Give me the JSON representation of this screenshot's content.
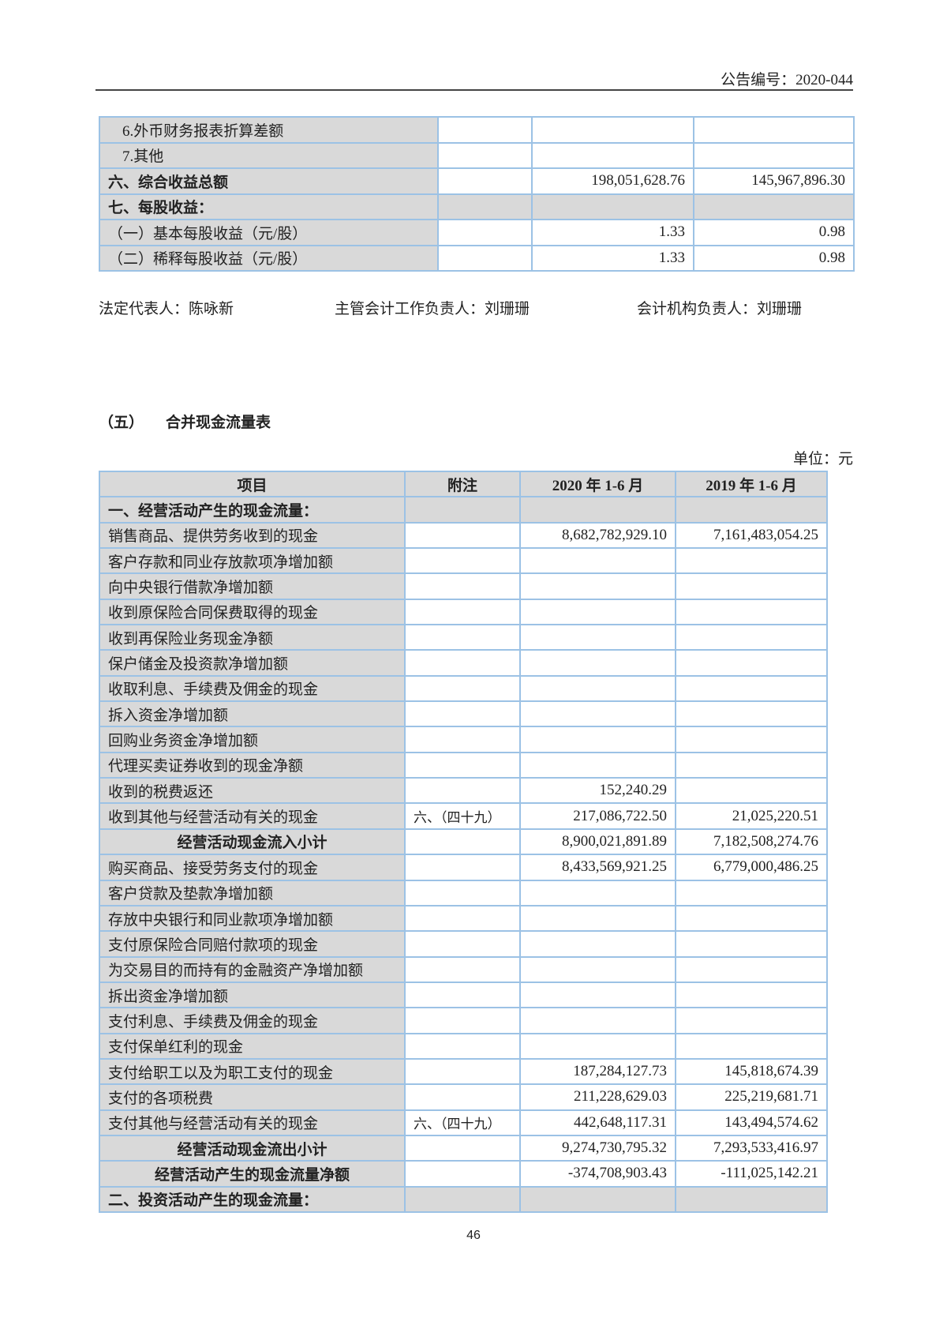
{
  "header": {
    "doc_number": "公告编号：2020-044"
  },
  "income_tail": {
    "rows": [
      {
        "label": "6.外币财务报表折算差额",
        "note": "",
        "v1": "",
        "v2": "",
        "type": "indent"
      },
      {
        "label": "7.其他",
        "note": "",
        "v1": "",
        "v2": "",
        "type": "indent"
      },
      {
        "label": "六、综合收益总额",
        "note": "",
        "v1": "198,051,628.76",
        "v2": "145,967,896.30",
        "type": "bold"
      },
      {
        "label": "七、每股收益：",
        "note": "",
        "v1": "",
        "v2": "",
        "type": "section"
      },
      {
        "label": "（一）基本每股收益（元/股）",
        "note": "",
        "v1": "1.33",
        "v2": "0.98",
        "type": "normal"
      },
      {
        "label": "（二）稀释每股收益（元/股）",
        "note": "",
        "v1": "1.33",
        "v2": "0.98",
        "type": "normal"
      }
    ]
  },
  "signatures": {
    "legal_rep": "法定代表人：陈咏新",
    "accounting_head": "主管会计工作负责人：刘珊珊",
    "accounting_dept_head": "会计机构负责人：刘珊珊"
  },
  "section": {
    "number": "（五）",
    "title": "合并现金流量表",
    "unit": "单位：元"
  },
  "cash_flow": {
    "headers": [
      "项目",
      "附注",
      "2020 年 1-6 月",
      "2019 年 1-6 月"
    ],
    "rows": [
      {
        "label": "一、经营活动产生的现金流量：",
        "note": "",
        "v1": "",
        "v2": "",
        "type": "section"
      },
      {
        "label": "销售商品、提供劳务收到的现金",
        "note": "",
        "v1": "8,682,782,929.10",
        "v2": "7,161,483,054.25",
        "type": "normal"
      },
      {
        "label": "客户存款和同业存放款项净增加额",
        "note": "",
        "v1": "",
        "v2": "",
        "type": "normal"
      },
      {
        "label": "向中央银行借款净增加额",
        "note": "",
        "v1": "",
        "v2": "",
        "type": "normal"
      },
      {
        "label": "收到原保险合同保费取得的现金",
        "note": "",
        "v1": "",
        "v2": "",
        "type": "normal"
      },
      {
        "label": "收到再保险业务现金净额",
        "note": "",
        "v1": "",
        "v2": "",
        "type": "normal"
      },
      {
        "label": "保户储金及投资款净增加额",
        "note": "",
        "v1": "",
        "v2": "",
        "type": "normal"
      },
      {
        "label": "收取利息、手续费及佣金的现金",
        "note": "",
        "v1": "",
        "v2": "",
        "type": "normal"
      },
      {
        "label": "拆入资金净增加额",
        "note": "",
        "v1": "",
        "v2": "",
        "type": "normal"
      },
      {
        "label": "回购业务资金净增加额",
        "note": "",
        "v1": "",
        "v2": "",
        "type": "normal"
      },
      {
        "label": "代理买卖证券收到的现金净额",
        "note": "",
        "v1": "",
        "v2": "",
        "type": "normal"
      },
      {
        "label": "收到的税费返还",
        "note": "",
        "v1": "152,240.29",
        "v2": "",
        "type": "normal"
      },
      {
        "label": "收到其他与经营活动有关的现金",
        "note": "六、（四十九）",
        "v1": "217,086,722.50",
        "v2": "21,025,220.51",
        "type": "normal"
      },
      {
        "label": "经营活动现金流入小计",
        "note": "",
        "v1": "8,900,021,891.89",
        "v2": "7,182,508,274.76",
        "type": "subtotal"
      },
      {
        "label": "购买商品、接受劳务支付的现金",
        "note": "",
        "v1": "8,433,569,921.25",
        "v2": "6,779,000,486.25",
        "type": "normal"
      },
      {
        "label": "客户贷款及垫款净增加额",
        "note": "",
        "v1": "",
        "v2": "",
        "type": "normal"
      },
      {
        "label": "存放中央银行和同业款项净增加额",
        "note": "",
        "v1": "",
        "v2": "",
        "type": "normal"
      },
      {
        "label": "支付原保险合同赔付款项的现金",
        "note": "",
        "v1": "",
        "v2": "",
        "type": "normal"
      },
      {
        "label": "为交易目的而持有的金融资产净增加额",
        "note": "",
        "v1": "",
        "v2": "",
        "type": "normal"
      },
      {
        "label": "拆出资金净增加额",
        "note": "",
        "v1": "",
        "v2": "",
        "type": "normal"
      },
      {
        "label": "支付利息、手续费及佣金的现金",
        "note": "",
        "v1": "",
        "v2": "",
        "type": "normal"
      },
      {
        "label": "支付保单红利的现金",
        "note": "",
        "v1": "",
        "v2": "",
        "type": "normal"
      },
      {
        "label": "支付给职工以及为职工支付的现金",
        "note": "",
        "v1": "187,284,127.73",
        "v2": "145,818,674.39",
        "type": "normal"
      },
      {
        "label": "支付的各项税费",
        "note": "",
        "v1": "211,228,629.03",
        "v2": "225,219,681.71",
        "type": "normal"
      },
      {
        "label": "支付其他与经营活动有关的现金",
        "note": "六、（四十九）",
        "v1": "442,648,117.31",
        "v2": "143,494,574.62",
        "type": "normal"
      },
      {
        "label": "经营活动现金流出小计",
        "note": "",
        "v1": "9,274,730,795.32",
        "v2": "7,293,533,416.97",
        "type": "subtotal"
      },
      {
        "label": "经营活动产生的现金流量净额",
        "note": "",
        "v1": "-374,708,903.43",
        "v2": "-111,025,142.21",
        "type": "subtotal"
      },
      {
        "label": "二、投资活动产生的现金流量：",
        "note": "",
        "v1": "",
        "v2": "",
        "type": "section"
      }
    ]
  },
  "footer": {
    "page_number": "46"
  }
}
